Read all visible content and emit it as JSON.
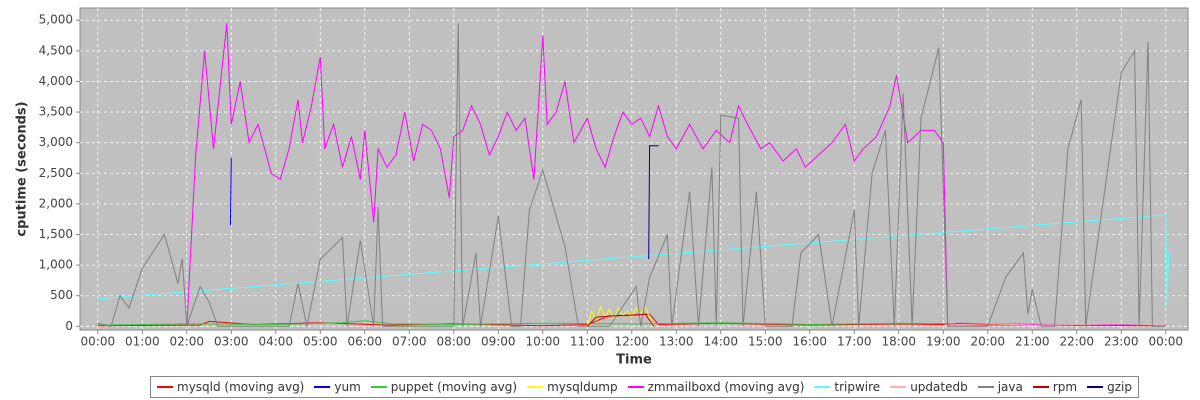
{
  "chart_data": {
    "type": "line",
    "xlabel": "Time",
    "ylabel": "cputime (seconds)",
    "xlim": [
      -0.4,
      24.5
    ],
    "ylim": [
      -60,
      5200
    ],
    "grid": true,
    "xticks": [
      {
        "value": 0,
        "label": "00:00"
      },
      {
        "value": 1,
        "label": "01:00"
      },
      {
        "value": 2,
        "label": "02:00"
      },
      {
        "value": 3,
        "label": "03:00"
      },
      {
        "value": 4,
        "label": "04:00"
      },
      {
        "value": 5,
        "label": "05:00"
      },
      {
        "value": 6,
        "label": "06:00"
      },
      {
        "value": 7,
        "label": "07:00"
      },
      {
        "value": 8,
        "label": "08:00"
      },
      {
        "value": 9,
        "label": "09:00"
      },
      {
        "value": 10,
        "label": "10:00"
      },
      {
        "value": 11,
        "label": "11:00"
      },
      {
        "value": 12,
        "label": "12:00"
      },
      {
        "value": 13,
        "label": "13:00"
      },
      {
        "value": 14,
        "label": "14:00"
      },
      {
        "value": 15,
        "label": "15:00"
      },
      {
        "value": 16,
        "label": "16:00"
      },
      {
        "value": 17,
        "label": "17:00"
      },
      {
        "value": 18,
        "label": "18:00"
      },
      {
        "value": 19,
        "label": "19:00"
      },
      {
        "value": 20,
        "label": "20:00"
      },
      {
        "value": 21,
        "label": "21:00"
      },
      {
        "value": 22,
        "label": "22:00"
      },
      {
        "value": 23,
        "label": "23:00"
      },
      {
        "value": 24,
        "label": "00:00"
      }
    ],
    "yticks": [
      0,
      500,
      {
        "value": 1000,
        "label": "1,000"
      },
      {
        "value": 1500,
        "label": "1,500"
      },
      {
        "value": 2000,
        "label": "2,000"
      },
      {
        "value": 2500,
        "label": "2,500"
      },
      {
        "value": 3000,
        "label": "3,000"
      },
      {
        "value": 3500,
        "label": "3,500"
      },
      {
        "value": 4000,
        "label": "4,000"
      },
      {
        "value": 4500,
        "label": "4,500"
      },
      {
        "value": 5000,
        "label": "5,000"
      }
    ],
    "series": [
      {
        "name": "mysqld (moving avg)",
        "color": "#ff0000",
        "x": [
          0,
          2.3,
          2.5,
          3.5,
          5,
          6.5,
          8,
          10,
          11,
          11.5,
          12.4,
          12.6,
          14,
          16,
          18,
          19,
          21,
          24
        ],
        "values": [
          10,
          20,
          80,
          30,
          60,
          20,
          40,
          10,
          30,
          170,
          200,
          30,
          50,
          20,
          40,
          30,
          20,
          10
        ]
      },
      {
        "name": "yum",
        "color": "#0000ff",
        "x": [
          2.98,
          3.0
        ],
        "values": [
          1650,
          2750
        ]
      },
      {
        "name": "puppet (moving avg)",
        "color": "#33cc33",
        "x": [
          0,
          2,
          4,
          5.5,
          6,
          6.6,
          8,
          10,
          12,
          14,
          16,
          18,
          20,
          22,
          24
        ],
        "values": [
          20,
          40,
          30,
          60,
          90,
          40,
          30,
          50,
          40,
          60,
          30,
          50,
          40,
          30,
          20
        ]
      },
      {
        "name": "mysqldump",
        "color": "#ffff00",
        "x": [
          11.0,
          11.1,
          11.2,
          11.3,
          11.4,
          11.5,
          11.6,
          11.7,
          11.8,
          11.9,
          12.0,
          12.1,
          12.2,
          12.3,
          12.4,
          12.5
        ],
        "values": [
          0,
          250,
          100,
          320,
          150,
          280,
          120,
          300,
          180,
          250,
          150,
          300,
          200,
          320,
          150,
          0
        ]
      },
      {
        "name": "zmmailboxd (moving avg)",
        "color": "#ff00ff",
        "x": [
          2.0,
          2.2,
          2.4,
          2.6,
          2.9,
          3.0,
          3.2,
          3.4,
          3.6,
          3.9,
          4.1,
          4.3,
          4.5,
          4.6,
          4.8,
          5.0,
          5.1,
          5.3,
          5.5,
          5.7,
          5.9,
          6.0,
          6.2,
          6.3,
          6.5,
          6.7,
          6.9,
          7.1,
          7.3,
          7.5,
          7.7,
          7.9,
          8.0,
          8.2,
          8.4,
          8.6,
          8.8,
          9.0,
          9.2,
          9.4,
          9.6,
          9.8,
          10.0,
          10.1,
          10.3,
          10.5,
          10.7,
          11.0,
          11.2,
          11.4,
          11.6,
          11.8,
          12.0,
          12.2,
          12.4,
          12.6,
          12.8,
          13.0,
          13.3,
          13.6,
          13.9,
          14.2,
          14.4,
          14.6,
          14.9,
          15.1,
          15.4,
          15.7,
          15.9,
          16.2,
          16.5,
          16.8,
          17.0,
          17.2,
          17.5,
          17.8,
          17.95,
          18.2,
          18.5,
          18.8,
          19.0,
          19.1,
          19.3,
          21,
          24
        ],
        "values": [
          0,
          2800,
          4500,
          2900,
          4950,
          3300,
          4000,
          3000,
          3300,
          2500,
          2400,
          2900,
          3700,
          3000,
          3600,
          4400,
          2900,
          3300,
          2600,
          3100,
          2400,
          3200,
          1700,
          2900,
          2600,
          2800,
          3500,
          2700,
          3300,
          3200,
          2900,
          2100,
          3100,
          3200,
          3600,
          3300,
          2800,
          3100,
          3500,
          3200,
          3400,
          2400,
          4750,
          3300,
          3500,
          4000,
          3000,
          3400,
          2900,
          2600,
          3100,
          3500,
          3300,
          3400,
          3100,
          3600,
          3100,
          2900,
          3300,
          2900,
          3200,
          3000,
          3600,
          3300,
          2900,
          3000,
          2700,
          2900,
          2600,
          2800,
          3000,
          3300,
          2700,
          2900,
          3100,
          3600,
          4100,
          3000,
          3200,
          3200,
          3000,
          0,
          50,
          30,
          20
        ]
      },
      {
        "name": "tripwire",
        "color": "#55ffff",
        "x": [
          0,
          24,
          24.03,
          24.06
        ],
        "values": [
          450,
          1820,
          350,
          1200
        ]
      },
      {
        "name": "updatedb",
        "color": "#ffafaf",
        "x": [
          19.0,
          20,
          21,
          22,
          23,
          24
        ],
        "values": [
          20,
          40,
          20,
          30,
          40,
          20
        ]
      },
      {
        "name": "java",
        "color": "#808080",
        "x": [
          0,
          0.3,
          0.5,
          0.7,
          1.0,
          1.5,
          1.8,
          1.9,
          2.0,
          2.3,
          2.5,
          2.7,
          4.3,
          4.5,
          4.7,
          5.0,
          5.5,
          5.6,
          5.9,
          6.2,
          6.3,
          6.4,
          8.0,
          8.1,
          8.2,
          8.5,
          8.6,
          9.0,
          9.3,
          9.5,
          9.7,
          10.0,
          10.5,
          10.8,
          11.5,
          12.1,
          12.2,
          12.4,
          12.8,
          12.9,
          13.3,
          13.5,
          13.8,
          13.9,
          14.0,
          14.4,
          14.5,
          14.8,
          15.0,
          15.6,
          15.8,
          16.2,
          16.5,
          17.0,
          17.1,
          17.4,
          17.7,
          17.9,
          18.1,
          18.3,
          18.5,
          18.9,
          19.1,
          20.0,
          20.4,
          20.8,
          20.9,
          21.0,
          21.2,
          21.5,
          21.8,
          22.1,
          22.2,
          23.0,
          23.3,
          23.4,
          23.6,
          23.7,
          24.0
        ],
        "values": [
          50,
          0,
          500,
          300,
          950,
          1500,
          700,
          1100,
          0,
          650,
          400,
          0,
          0,
          700,
          0,
          1100,
          1450,
          0,
          1400,
          0,
          1950,
          0,
          0,
          4950,
          0,
          1200,
          0,
          1800,
          0,
          0,
          1900,
          2550,
          1300,
          0,
          0,
          650,
          0,
          800,
          1500,
          0,
          2200,
          0,
          2600,
          0,
          3450,
          3400,
          0,
          2200,
          0,
          0,
          1200,
          1500,
          0,
          1900,
          0,
          2500,
          3200,
          0,
          3800,
          0,
          3400,
          4550,
          0,
          0,
          800,
          1200,
          200,
          600,
          0,
          0,
          2900,
          3700,
          0,
          4150,
          4500,
          0,
          4650,
          0,
          0
        ]
      },
      {
        "name": "rpm",
        "color": "#c00000",
        "x": [
          11.0,
          11.2,
          11.6,
          12.0,
          12.3,
          12.5
        ],
        "values": [
          0,
          150,
          170,
          180,
          200,
          0
        ]
      },
      {
        "name": "gzip",
        "color": "#000080",
        "x": [
          12.38,
          12.4,
          12.6
        ],
        "values": [
          1100,
          2950,
          2950
        ]
      }
    ]
  }
}
